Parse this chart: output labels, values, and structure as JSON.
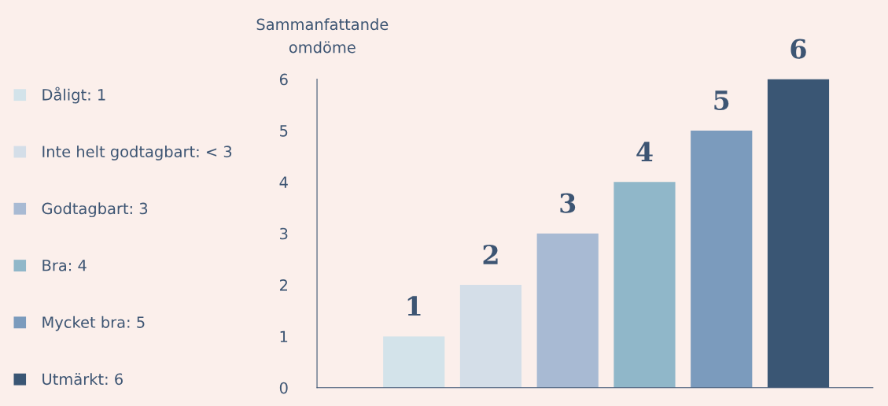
{
  "chart_data": {
    "type": "bar",
    "ylabel": "Sammanfattande omdöme",
    "categories": [
      null,
      null,
      null,
      null,
      null,
      null
    ],
    "series": [
      {
        "name": "Dåligt: 1",
        "color": "#d3e3ea",
        "values": [
          1,
          null,
          null,
          null,
          null,
          null
        ]
      },
      {
        "name": "Inte helt godtagbart: < 3",
        "color": "#d4dee8",
        "values": [
          null,
          2,
          null,
          null,
          null,
          null
        ]
      },
      {
        "name": "Godtagbart: 3",
        "color": "#a8bad3",
        "values": [
          null,
          null,
          3,
          null,
          null,
          null
        ]
      },
      {
        "name": "Bra: 4",
        "color": "#90b7c9",
        "values": [
          null,
          null,
          null,
          4,
          null,
          null
        ]
      },
      {
        "name": "Mycket bra: 5",
        "color": "#7b9bbd",
        "values": [
          null,
          null,
          null,
          null,
          5,
          null
        ]
      },
      {
        "name": "Utmärkt: 6",
        "color": "#3a5674",
        "values": [
          null,
          null,
          null,
          null,
          null,
          6
        ]
      }
    ],
    "ylim": [
      0,
      6
    ],
    "yticks": [
      0,
      1,
      2,
      3,
      4,
      5,
      6
    ],
    "stacked": true,
    "data_labels": true,
    "grid": false,
    "legend": "left"
  }
}
